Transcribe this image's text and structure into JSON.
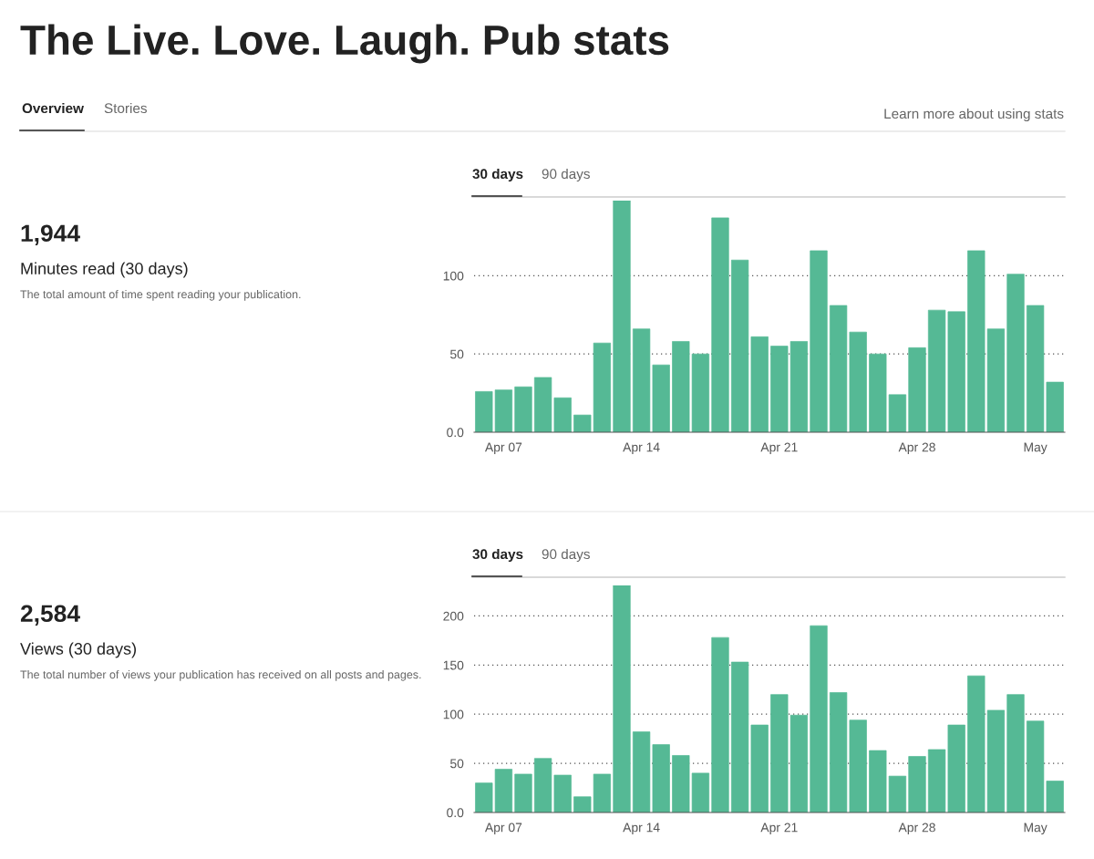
{
  "chart_data": [
    {
      "type": "other",
      "title": "The Live. Love. Laugh. Pub stats",
      "annotations": [
        "Overview",
        "Stories",
        "Learn more about using stats"
      ]
    },
    {
      "type": "other",
      "title": "1,944",
      "subtitle": "Minutes read (30 days)",
      "annotations": [
        "The total amount of time spent reading your publication."
      ]
    },
    {
      "type": "bar",
      "annotations": [
        "30 days",
        "90 days"
      ],
      "categories": [
        null,
        "Apr 07",
        null,
        null,
        null,
        null,
        null,
        null,
        "Apr 14",
        null,
        null,
        null,
        null,
        null,
        null,
        "Apr 21",
        null,
        null,
        null,
        null,
        null,
        null,
        "Apr 28",
        null,
        null,
        null,
        null,
        null,
        "May",
        null
      ],
      "values": [
        26,
        27,
        29,
        35,
        22,
        11,
        57,
        148,
        66,
        43,
        58,
        50,
        137,
        110,
        61,
        55,
        58,
        116,
        81,
        64,
        50,
        24,
        54,
        78,
        77,
        116,
        66,
        101,
        81,
        32
      ],
      "color": "#55b995",
      "ylim": [
        0,
        148
      ],
      "yticks": [
        {
          "value": 0,
          "label": "0.0"
        },
        50,
        100
      ],
      "grid": "y"
    },
    {
      "type": "other",
      "title": "2,584",
      "subtitle": "Views (30 days)",
      "annotations": [
        "The total number of views your publication has received on all posts and pages."
      ]
    },
    {
      "type": "bar",
      "annotations": [
        "30 days",
        "90 days"
      ],
      "categories": [
        null,
        "Apr 07",
        null,
        null,
        null,
        null,
        null,
        null,
        "Apr 14",
        null,
        null,
        null,
        null,
        null,
        null,
        "Apr 21",
        null,
        null,
        null,
        null,
        null,
        null,
        "Apr 28",
        null,
        null,
        null,
        null,
        null,
        "May",
        null
      ],
      "values": [
        30,
        44,
        39,
        55,
        38,
        16,
        39,
        231,
        82,
        69,
        58,
        40,
        178,
        153,
        89,
        120,
        99,
        190,
        122,
        94,
        63,
        37,
        57,
        64,
        89,
        139,
        104,
        120,
        93,
        32
      ],
      "color": "#55b995",
      "ylim": [
        0,
        231
      ],
      "yticks": [
        {
          "value": 0,
          "label": "0.0"
        },
        50,
        100,
        150,
        200
      ],
      "grid": "y"
    }
  ]
}
